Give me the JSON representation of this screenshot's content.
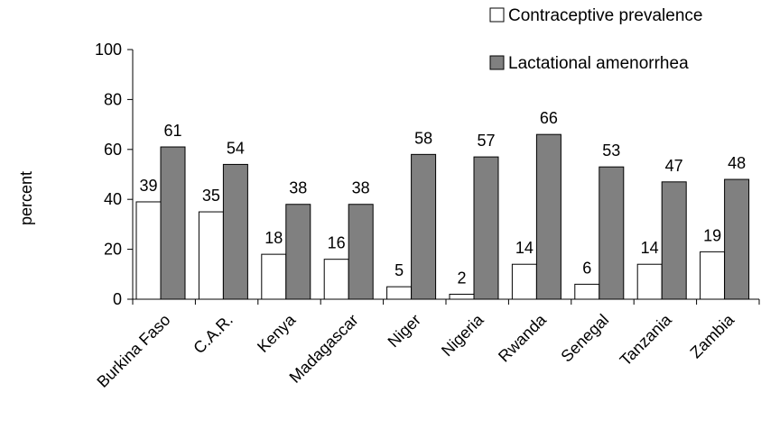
{
  "chart_data": {
    "type": "bar",
    "title": "",
    "xlabel": "",
    "ylabel": "percent",
    "ylim": [
      0,
      100
    ],
    "yticks": [
      0,
      20,
      40,
      60,
      80,
      100
    ],
    "grid": false,
    "legend_position": "top-right",
    "categories": [
      "Burkina Faso",
      "C.A.R.",
      "Kenya",
      "Madagascar",
      "Niger",
      "Nigeria",
      "Rwanda",
      "Senegal",
      "Tanzania",
      "Zambia"
    ],
    "series": [
      {
        "name": "Contraceptive prevalence",
        "color": "#ffffff",
        "values": [
          39,
          35,
          18,
          16,
          5,
          2,
          14,
          6,
          14,
          19
        ]
      },
      {
        "name": "Lactational amenorrhea",
        "color": "#808080",
        "values": [
          61,
          54,
          38,
          38,
          58,
          57,
          66,
          53,
          47,
          48
        ]
      }
    ]
  }
}
